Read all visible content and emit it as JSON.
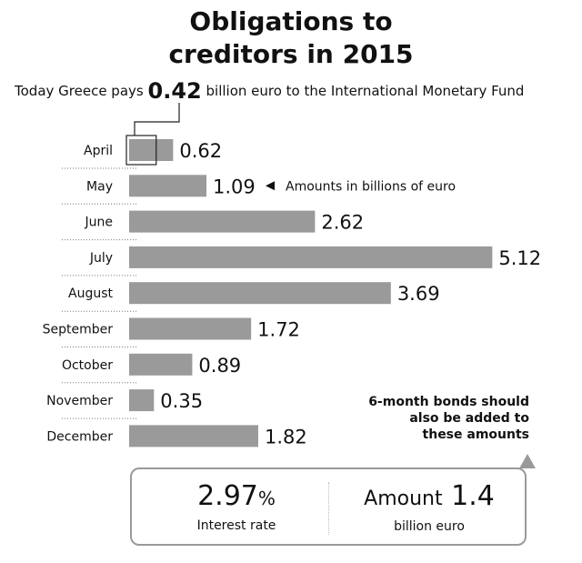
{
  "title_line1": "Obligations to",
  "title_line2": "creditors in 2015",
  "today": {
    "prefix": "Today Greece pays",
    "amount": "0.42",
    "suffix": "billion euro to the International Monetary Fund"
  },
  "units_note": "Amounts in billions of euro",
  "chart_data": {
    "type": "bar",
    "orientation": "horizontal",
    "categories": [
      "April",
      "May",
      "June",
      "July",
      "August",
      "September",
      "October",
      "November",
      "December"
    ],
    "values": [
      0.62,
      1.09,
      2.62,
      5.12,
      3.69,
      1.72,
      0.89,
      0.35,
      1.82
    ],
    "value_labels": [
      "0.62",
      "1.09",
      "2.62",
      "5.12",
      "3.69",
      "1.72",
      "0.89",
      "0.35",
      "1.82"
    ],
    "highlight": {
      "category": "April",
      "value": 0.42
    },
    "bar_color": "#9a9a9a",
    "grid": false
  },
  "bonds_note": {
    "line1": "6-month bonds should",
    "line2": "also be added to",
    "line3": "these amounts"
  },
  "infobox": {
    "rate_value": "2.97",
    "rate_unit": "%",
    "rate_label": "Interest rate",
    "amount_prefix": "Amount",
    "amount_value": "1.4",
    "amount_label": "billion euro"
  }
}
